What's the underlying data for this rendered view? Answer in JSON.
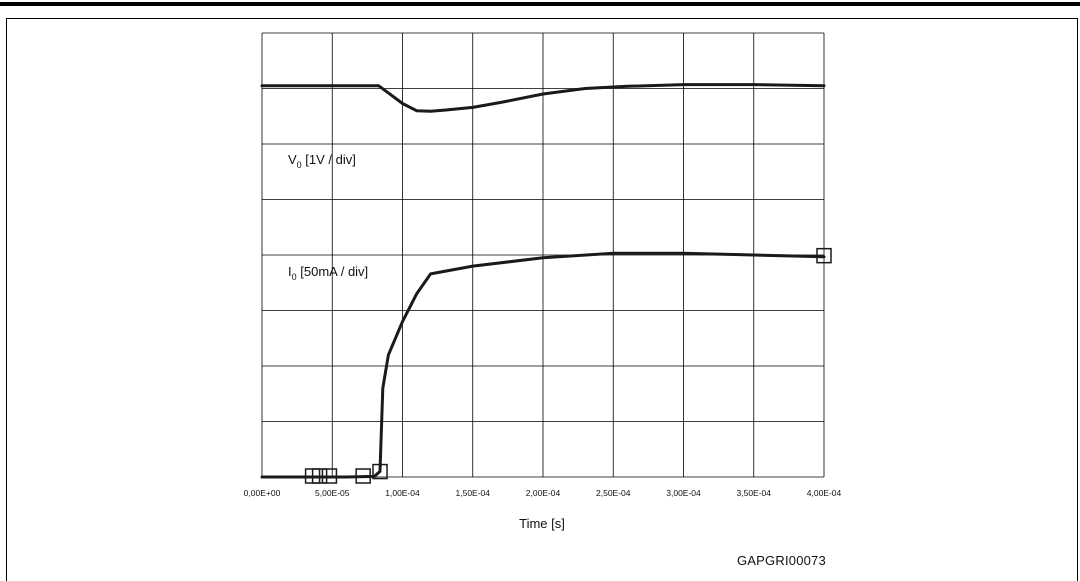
{
  "figure_id": "GAPGRI00073",
  "chart_data": {
    "type": "line",
    "xlabel": "Time [s]",
    "ylabel": "",
    "xlim": [
      0,
      0.0004
    ],
    "ylim": [
      0,
      8
    ],
    "grid": true,
    "x_ticks": [
      "0,00E+00",
      "5,00E-05",
      "1,00E-04",
      "1,50E-04",
      "2,00E-04",
      "2,50E-04",
      "3,00E-04",
      "3,50E-04",
      "4,00E-04"
    ],
    "series": [
      {
        "label_main": "V",
        "label_sub": "0",
        "label_rest": " [1V / div]",
        "unit_per_div": "1V",
        "x": [
          0,
          2e-05,
          4e-05,
          6e-05,
          8.3e-05,
          9e-05,
          0.0001,
          0.00011,
          0.00012,
          0.00013,
          0.00015,
          0.00017,
          0.0002,
          0.00023,
          0.00026,
          0.0003,
          0.00035,
          0.0004
        ],
        "values": [
          7.05,
          7.05,
          7.05,
          7.05,
          7.05,
          6.92,
          6.73,
          6.6,
          6.59,
          6.61,
          6.66,
          6.75,
          6.9,
          7.0,
          7.04,
          7.07,
          7.07,
          7.05
        ]
      },
      {
        "label_main": "I",
        "label_sub": "0",
        "label_rest": " [50mA / div]",
        "unit_per_div": "50mA",
        "x": [
          0,
          2e-05,
          4e-05,
          6e-05,
          8e-05,
          8.4e-05,
          8.6e-05,
          9e-05,
          0.0001,
          0.00011,
          0.00012,
          0.00015,
          0.0002,
          0.00025,
          0.0003,
          0.00035,
          0.0004
        ],
        "values": [
          0,
          0,
          0,
          0,
          0.01,
          0.1,
          1.6,
          2.2,
          2.8,
          3.3,
          3.66,
          3.8,
          3.95,
          4.03,
          4.03,
          4.0,
          3.97
        ]
      }
    ],
    "markers": [
      {
        "series": 1,
        "x": 3.6e-05,
        "y": 0
      },
      {
        "series": 1,
        "x": 4.1e-05,
        "y": 0
      },
      {
        "series": 1,
        "x": 4.8e-05,
        "y": 0
      },
      {
        "series": 1,
        "x": 7.2e-05,
        "y": 0
      },
      {
        "series": 1,
        "x": 8.4e-05,
        "y": 0.08
      },
      {
        "series": 1,
        "x": 0.0004,
        "y": 3.97
      }
    ]
  }
}
